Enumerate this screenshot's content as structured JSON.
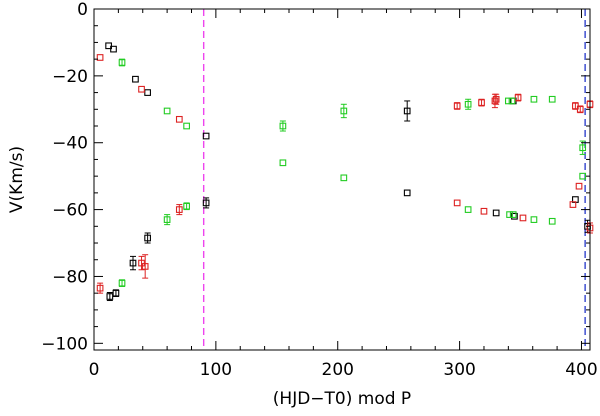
{
  "chart_data": {
    "type": "scatter",
    "title": "",
    "xlabel": "(HJD−T0) mod P",
    "ylabel": "V(Km/s)",
    "xlim": [
      0,
      407
    ],
    "ylim": [
      -102,
      0
    ],
    "xticks": [
      {
        "v": 0,
        "label": "0"
      },
      {
        "v": 100,
        "label": "100"
      },
      {
        "v": 200,
        "label": "200"
      },
      {
        "v": 300,
        "label": "300"
      },
      {
        "v": 400,
        "label": "400"
      }
    ],
    "yticks": [
      {
        "v": 0,
        "label": "0"
      },
      {
        "v": -20,
        "label": "−20"
      },
      {
        "v": -40,
        "label": "−40"
      },
      {
        "v": -60,
        "label": "−60"
      },
      {
        "v": -80,
        "label": "−80"
      },
      {
        "v": -100,
        "label": "−100"
      }
    ],
    "grid": false,
    "vlines": [
      {
        "x": 90,
        "color": "#ee44ee",
        "style": "dashed"
      },
      {
        "x": 403,
        "color": "#3344cc",
        "style": "dashed"
      }
    ],
    "series": [
      {
        "color": "#000000",
        "points": [
          {
            "x": 12,
            "y": -11,
            "err": 0.8
          },
          {
            "x": 16,
            "y": -12,
            "err": 0.8
          },
          {
            "x": 34,
            "y": -21,
            "err": 0.8
          },
          {
            "x": 44,
            "y": -25,
            "err": 0.8
          },
          {
            "x": 92,
            "y": -38,
            "err": 0.8
          },
          {
            "x": 257,
            "y": -30.5,
            "err": 3
          },
          {
            "x": 344,
            "y": -27.5,
            "err": 0.8
          },
          {
            "x": 405,
            "y": -65,
            "err": 1.8
          },
          {
            "x": 13,
            "y": -86,
            "err": 1.2
          },
          {
            "x": 18,
            "y": -85,
            "err": 1
          },
          {
            "x": 32,
            "y": -76,
            "err": 2
          },
          {
            "x": 44,
            "y": -68.5,
            "err": 1.5
          },
          {
            "x": 92,
            "y": -58,
            "err": 1.5
          },
          {
            "x": 257,
            "y": -55,
            "err": 0.8
          },
          {
            "x": 330,
            "y": -61,
            "err": 0.8
          },
          {
            "x": 345,
            "y": -62,
            "err": 0.8
          },
          {
            "x": 395,
            "y": -57,
            "err": 0.8
          }
        ]
      },
      {
        "color": "#dd2222",
        "points": [
          {
            "x": 5,
            "y": -14.5,
            "err": 0.8
          },
          {
            "x": 39,
            "y": -24,
            "err": 0.8
          },
          {
            "x": 70,
            "y": -33,
            "err": 0.8
          },
          {
            "x": 298,
            "y": -29,
            "err": 1
          },
          {
            "x": 318,
            "y": -28,
            "err": 1
          },
          {
            "x": 329,
            "y": -27.5,
            "err": 2
          },
          {
            "x": 330,
            "y": -27,
            "err": 1.5
          },
          {
            "x": 348,
            "y": -26.5,
            "err": 1
          },
          {
            "x": 395,
            "y": -29,
            "err": 1
          },
          {
            "x": 399,
            "y": -30,
            "err": 1
          },
          {
            "x": 407,
            "y": -28.5,
            "err": 1
          },
          {
            "x": 5,
            "y": -83.5,
            "err": 1.5
          },
          {
            "x": 39,
            "y": -76,
            "err": 2
          },
          {
            "x": 42,
            "y": -77,
            "err": 3.5
          },
          {
            "x": 70,
            "y": -60,
            "err": 1.5
          },
          {
            "x": 298,
            "y": -58,
            "err": 0.8
          },
          {
            "x": 320,
            "y": -60.5,
            "err": 0.8
          },
          {
            "x": 352,
            "y": -62.5,
            "err": 0.8
          },
          {
            "x": 393,
            "y": -58.5,
            "err": 0.8
          },
          {
            "x": 398,
            "y": -53,
            "err": 0.8
          },
          {
            "x": 407,
            "y": -65.5,
            "err": 1.5
          }
        ]
      },
      {
        "color": "#22cc22",
        "points": [
          {
            "x": 23,
            "y": -16,
            "err": 1
          },
          {
            "x": 60,
            "y": -30.5,
            "err": 0.8
          },
          {
            "x": 76,
            "y": -35,
            "err": 0.8
          },
          {
            "x": 155,
            "y": -35,
            "err": 1.5
          },
          {
            "x": 205,
            "y": -30.5,
            "err": 2
          },
          {
            "x": 307,
            "y": -28.5,
            "err": 1.5
          },
          {
            "x": 340,
            "y": -27.5,
            "err": 0.8
          },
          {
            "x": 343,
            "y": -27.5,
            "err": 0.8
          },
          {
            "x": 361,
            "y": -27,
            "err": 0.8
          },
          {
            "x": 376,
            "y": -27,
            "err": 0.8
          },
          {
            "x": 401,
            "y": -41.5,
            "err": 2
          },
          {
            "x": 23,
            "y": -82,
            "err": 1
          },
          {
            "x": 60,
            "y": -63,
            "err": 1.5
          },
          {
            "x": 76,
            "y": -59,
            "err": 1
          },
          {
            "x": 155,
            "y": -46,
            "err": 0.8
          },
          {
            "x": 205,
            "y": -50.5,
            "err": 0.8
          },
          {
            "x": 307,
            "y": -60,
            "err": 0.8
          },
          {
            "x": 341,
            "y": -61.5,
            "err": 0.8
          },
          {
            "x": 344,
            "y": -61.5,
            "err": 0.8
          },
          {
            "x": 361,
            "y": -63,
            "err": 0.8
          },
          {
            "x": 376,
            "y": -63.5,
            "err": 0.8
          },
          {
            "x": 401,
            "y": -50,
            "err": 0.8
          }
        ]
      }
    ]
  }
}
